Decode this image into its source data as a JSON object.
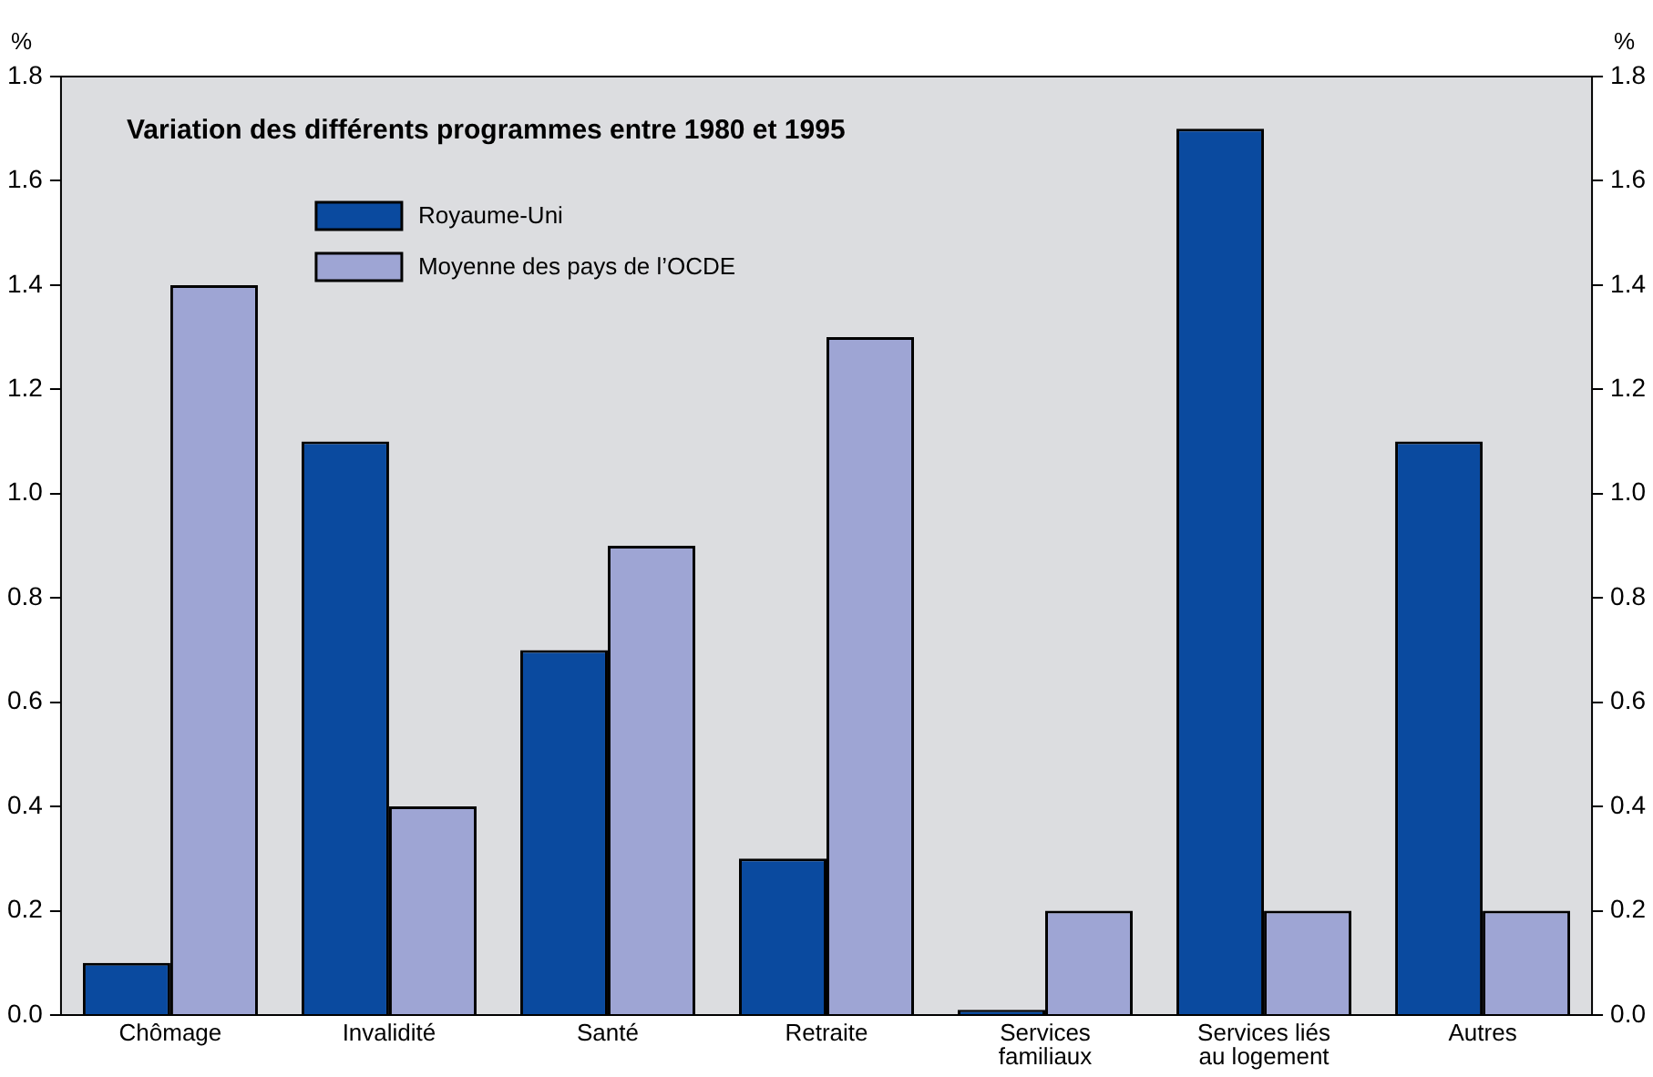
{
  "chart_data": {
    "type": "bar",
    "title": "Variation des différents programmes entre 1980 et 1995",
    "ylabel": "%",
    "y2label": "%",
    "categories": [
      "Chômage",
      "Invalidité",
      "Santé",
      "Retraite",
      "Services familiaux",
      "Services liés au logement",
      "Autres"
    ],
    "series": [
      {
        "name": "Royaume-Uni",
        "color": "#0a4a9f",
        "values": [
          0.1,
          1.1,
          0.7,
          0.3,
          0.01,
          1.7,
          1.1
        ]
      },
      {
        "name": "Moyenne des pays de l’OCDE",
        "color": "#9ea5d4",
        "values": [
          1.4,
          0.4,
          0.9,
          1.3,
          0.2,
          0.2,
          0.2
        ]
      }
    ],
    "ylim": [
      0,
      1.8
    ],
    "yticks": [
      {
        "value": 0,
        "label": "0.0"
      },
      {
        "value": 0.2,
        "label": "0.2"
      },
      {
        "value": 0.4,
        "label": "0.4"
      },
      {
        "value": 0.6,
        "label": "0.6"
      },
      {
        "value": 0.8,
        "label": "0.8"
      },
      {
        "value": 1,
        "label": "1.0"
      },
      {
        "value": 1.2,
        "label": "1.2"
      },
      {
        "value": 1.4,
        "label": "1.4"
      },
      {
        "value": 1.6,
        "label": "1.6"
      },
      {
        "value": 1.8,
        "label": "1.8"
      }
    ],
    "y2lim": [
      0,
      1.8
    ],
    "y2ticks": [
      {
        "value": 0,
        "label": "0.0"
      },
      {
        "value": 0.2,
        "label": "0.2"
      },
      {
        "value": 0.4,
        "label": "0.4"
      },
      {
        "value": 0.6,
        "label": "0.6"
      },
      {
        "value": 0.8,
        "label": "0.8"
      },
      {
        "value": 1,
        "label": "1.0"
      },
      {
        "value": 1.2,
        "label": "1.2"
      },
      {
        "value": 1.4,
        "label": "1.4"
      },
      {
        "value": 1.6,
        "label": "1.6"
      },
      {
        "value": 1.8,
        "label": "1.8"
      }
    ],
    "grid": false,
    "legend": "top left"
  }
}
